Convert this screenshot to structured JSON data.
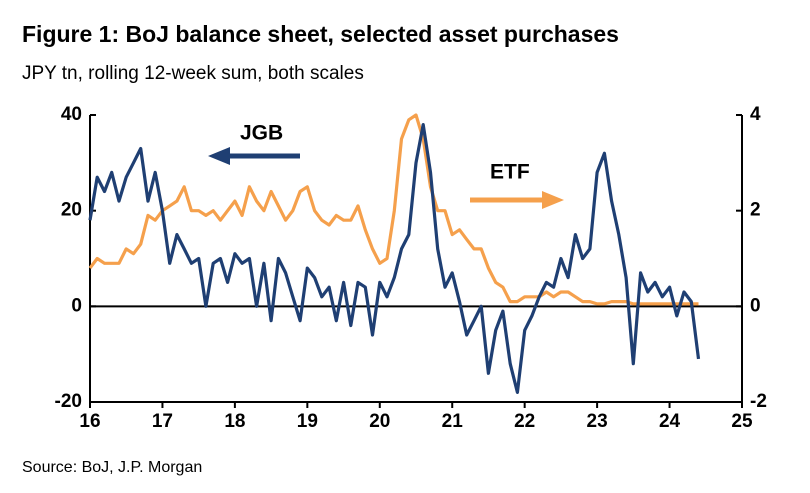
{
  "chart_data": {
    "type": "line",
    "title": "Figure 1: BoJ balance sheet, selected asset purchases",
    "subtitle": "JPY tn, rolling 12-week sum, both scales",
    "source": "Source: BoJ, J.P. Morgan",
    "annotations": [
      "JGB",
      "ETF"
    ],
    "x": [
      16.0,
      16.1,
      16.2,
      16.3,
      16.4,
      16.5,
      16.6,
      16.7,
      16.8,
      16.9,
      17.0,
      17.1,
      17.2,
      17.3,
      17.4,
      17.5,
      17.6,
      17.7,
      17.8,
      17.9,
      18.0,
      18.1,
      18.2,
      18.3,
      18.4,
      18.5,
      18.6,
      18.7,
      18.8,
      18.9,
      19.0,
      19.1,
      19.2,
      19.3,
      19.4,
      19.5,
      19.6,
      19.7,
      19.8,
      19.9,
      20.0,
      20.1,
      20.2,
      20.3,
      20.4,
      20.5,
      20.6,
      20.7,
      20.8,
      20.9,
      21.0,
      21.1,
      21.2,
      21.3,
      21.4,
      21.5,
      21.6,
      21.7,
      21.8,
      21.9,
      22.0,
      22.1,
      22.2,
      22.3,
      22.4,
      22.5,
      22.6,
      22.7,
      22.8,
      22.9,
      23.0,
      23.1,
      23.2,
      23.3,
      23.4,
      23.5,
      23.6,
      23.7,
      23.8,
      23.9,
      24.0,
      24.1,
      24.2,
      24.3,
      24.4
    ],
    "series": [
      {
        "name": "JGB",
        "color": "#1f3f73",
        "axis": "y",
        "values": [
          18,
          27,
          24,
          28,
          22,
          27,
          30,
          33,
          22,
          28,
          20,
          9,
          15,
          12,
          9,
          10,
          0,
          9,
          10,
          5,
          11,
          9,
          10,
          0,
          9,
          -3,
          10,
          7,
          2,
          -3,
          8,
          6,
          2,
          4,
          -3,
          5,
          -4,
          5,
          4,
          -6,
          5,
          2,
          6,
          12,
          15,
          30,
          38,
          28,
          12,
          4,
          7,
          1,
          -6,
          -3,
          0,
          -14,
          -5,
          -1,
          -12,
          -18,
          -5,
          -2,
          2,
          5,
          4,
          10,
          6,
          15,
          10,
          12,
          28,
          32,
          22,
          15,
          6,
          -12,
          7,
          3,
          5,
          2,
          4,
          -2,
          3,
          1,
          -11
        ]
      },
      {
        "name": "ETF",
        "color": "#f5a04c",
        "axis": "y2",
        "values": [
          0.8,
          1.0,
          0.9,
          0.9,
          0.9,
          1.2,
          1.1,
          1.3,
          1.9,
          1.8,
          2.0,
          2.1,
          2.2,
          2.5,
          2.0,
          2.0,
          1.9,
          2.0,
          1.8,
          2.0,
          2.2,
          1.9,
          2.5,
          2.2,
          2.0,
          2.4,
          2.1,
          1.8,
          2.0,
          2.4,
          2.5,
          2.0,
          1.8,
          1.7,
          1.9,
          1.8,
          1.8,
          2.1,
          1.6,
          1.2,
          0.9,
          1.0,
          2.0,
          3.5,
          3.9,
          4.0,
          3.5,
          2.5,
          2.0,
          2.0,
          1.5,
          1.6,
          1.4,
          1.2,
          1.2,
          0.8,
          0.5,
          0.4,
          0.1,
          0.1,
          0.2,
          0.2,
          0.2,
          0.3,
          0.2,
          0.3,
          0.3,
          0.2,
          0.1,
          0.1,
          0.05,
          0.05,
          0.1,
          0.1,
          0.1,
          0.05,
          0.05,
          0.05,
          0.05,
          0.05,
          0.05,
          0.05,
          0.05,
          0.05,
          0.05
        ]
      }
    ],
    "xlim": [
      16,
      25
    ],
    "xticks": [
      16,
      17,
      18,
      19,
      20,
      21,
      22,
      23,
      24,
      25
    ],
    "ylim": [
      -20,
      40
    ],
    "yticks": [
      -20,
      0,
      20,
      40
    ],
    "y2lim": [
      -2,
      4
    ],
    "y2ticks": [
      -2,
      0,
      2,
      4
    ]
  }
}
